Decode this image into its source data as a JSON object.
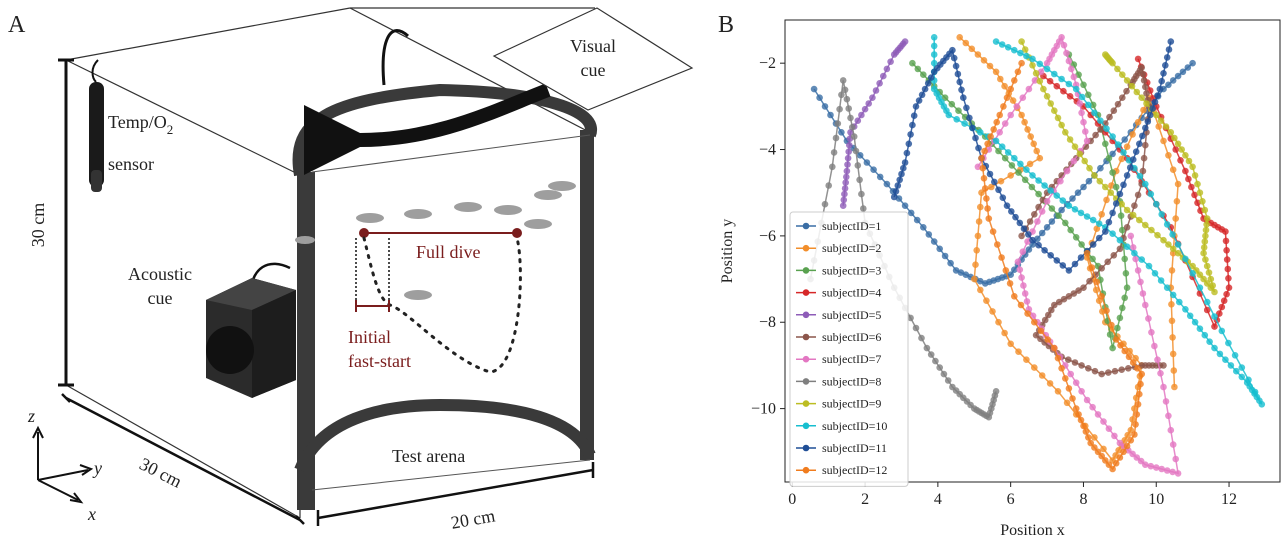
{
  "panel_a": {
    "letter": "A",
    "visual_cue": [
      "Visual",
      "cue"
    ],
    "sensor": [
      "Temp/O",
      "2",
      "sensor"
    ],
    "height_label": "30 cm",
    "acoustic_cue": [
      "Acoustic",
      "cue"
    ],
    "full_dive": "Full dive",
    "initial_fast_start": [
      "Initial",
      "fast-start"
    ],
    "test_arena": "Test arena",
    "depth_label": "30 cm",
    "width_label": "20 cm",
    "axis_z": "z",
    "axis_y": "y",
    "axis_x": "x",
    "colors": {
      "accent_dark_red": "#7a1d1d",
      "tank_frame": "#333333"
    }
  },
  "panel_b": {
    "letter": "B"
  },
  "chart_data": {
    "type": "line",
    "xlabel": "Position x",
    "ylabel": "Position y",
    "xlim": [
      -0.2,
      13.4
    ],
    "ylim": [
      -11.7,
      -1.0
    ],
    "xticks": [
      0,
      2,
      4,
      6,
      8,
      10,
      12
    ],
    "yticks": [
      -2,
      -4,
      -6,
      -8,
      -10
    ],
    "grid": false,
    "legend_position": "lower-left",
    "series": [
      {
        "name": "subjectID=1",
        "color": "#3a6ea5",
        "points": [
          [
            0.6,
            -2.6
          ],
          [
            1.5,
            -3.8
          ],
          [
            2.6,
            -4.8
          ],
          [
            3.6,
            -5.8
          ],
          [
            4.5,
            -6.8
          ],
          [
            5.3,
            -7.1
          ],
          [
            6.0,
            -6.9
          ],
          [
            6.6,
            -6.2
          ],
          [
            7.4,
            -5.4
          ],
          [
            8.3,
            -4.6
          ],
          [
            9.3,
            -3.6
          ],
          [
            10.2,
            -2.6
          ],
          [
            11.0,
            -2.0
          ]
        ]
      },
      {
        "name": "subjectID=2",
        "color": "#f28e2b",
        "points": [
          [
            4.6,
            -1.4
          ],
          [
            5.6,
            -2.2
          ],
          [
            6.3,
            -3.2
          ],
          [
            6.8,
            -4.2
          ],
          [
            5.2,
            -5.0
          ],
          [
            5.0,
            -7.0
          ],
          [
            6.0,
            -8.5
          ],
          [
            7.3,
            -9.6
          ],
          [
            8.8,
            -11.2
          ],
          [
            9.3,
            -10.5
          ],
          [
            9.6,
            -9.0
          ],
          [
            8.6,
            -8.0
          ],
          [
            8.1,
            -6.5
          ],
          [
            8.9,
            -4.5
          ],
          [
            9.8,
            -2.8
          ],
          [
            10.6,
            -4.8
          ],
          [
            10.4,
            -7.2
          ],
          [
            10.5,
            -9.5
          ]
        ]
      },
      {
        "name": "subjectID=3",
        "color": "#59a14f",
        "points": [
          [
            3.3,
            -2.0
          ],
          [
            4.2,
            -2.8
          ],
          [
            5.3,
            -3.7
          ],
          [
            6.4,
            -4.7
          ],
          [
            7.5,
            -5.7
          ],
          [
            8.4,
            -6.7
          ],
          [
            8.8,
            -8.6
          ],
          [
            9.2,
            -7.2
          ],
          [
            9.0,
            -5.2
          ],
          [
            8.4,
            -3.2
          ],
          [
            7.6,
            -1.8
          ]
        ]
      },
      {
        "name": "subjectID=4",
        "color": "#d62728",
        "points": [
          [
            9.5,
            -1.9
          ],
          [
            10.0,
            -3.0
          ],
          [
            10.8,
            -4.5
          ],
          [
            11.3,
            -5.6
          ],
          [
            11.9,
            -5.9
          ],
          [
            12.0,
            -7.2
          ],
          [
            11.6,
            -8.1
          ],
          [
            10.4,
            -5.8
          ],
          [
            9.2,
            -4.2
          ],
          [
            8.0,
            -3.0
          ],
          [
            6.9,
            -2.3
          ]
        ]
      },
      {
        "name": "subjectID=5",
        "color": "#8e5cb8",
        "points": [
          [
            1.4,
            -5.3
          ],
          [
            1.5,
            -4.5
          ],
          [
            1.6,
            -3.6
          ],
          [
            2.2,
            -2.8
          ],
          [
            2.8,
            -1.8
          ],
          [
            3.1,
            -1.5
          ]
        ]
      },
      {
        "name": "subjectID=6",
        "color": "#8c564b",
        "points": [
          [
            6.3,
            -6.0
          ],
          [
            7.0,
            -5.0
          ],
          [
            7.8,
            -4.2
          ],
          [
            8.6,
            -3.4
          ],
          [
            9.3,
            -2.5
          ],
          [
            9.6,
            -2.1
          ],
          [
            9.8,
            -3.0
          ],
          [
            9.6,
            -4.8
          ],
          [
            9.0,
            -6.3
          ],
          [
            8.0,
            -7.2
          ],
          [
            7.2,
            -7.6
          ],
          [
            6.7,
            -8.3
          ],
          [
            7.4,
            -8.8
          ],
          [
            8.5,
            -9.2
          ],
          [
            9.6,
            -9.0
          ],
          [
            10.2,
            -9.0
          ]
        ]
      },
      {
        "name": "subjectID=7",
        "color": "#e377c2",
        "points": [
          [
            5.1,
            -4.4
          ],
          [
            6.0,
            -3.2
          ],
          [
            7.0,
            -2.0
          ],
          [
            7.4,
            -1.4
          ],
          [
            7.8,
            -2.5
          ],
          [
            8.1,
            -3.8
          ],
          [
            7.0,
            -5.2
          ],
          [
            6.2,
            -6.6
          ],
          [
            6.5,
            -7.7
          ],
          [
            7.2,
            -8.6
          ],
          [
            8.1,
            -9.8
          ],
          [
            9.0,
            -10.8
          ],
          [
            9.7,
            -11.3
          ],
          [
            10.6,
            -11.5
          ],
          [
            10.2,
            -9.5
          ],
          [
            9.7,
            -7.6
          ],
          [
            9.3,
            -6.0
          ]
        ]
      },
      {
        "name": "subjectID=8",
        "color": "#7f7f7f",
        "points": [
          [
            0.5,
            -7.0
          ],
          [
            1.1,
            -4.4
          ],
          [
            1.4,
            -2.4
          ],
          [
            1.7,
            -3.7
          ],
          [
            2.0,
            -5.7
          ],
          [
            2.8,
            -7.2
          ],
          [
            3.7,
            -8.6
          ],
          [
            4.4,
            -9.5
          ],
          [
            5.0,
            -10.0
          ],
          [
            5.4,
            -10.2
          ],
          [
            5.6,
            -9.6
          ]
        ]
      },
      {
        "name": "subjectID=9",
        "color": "#bcbd22",
        "points": [
          [
            6.3,
            -1.5
          ],
          [
            6.9,
            -2.6
          ],
          [
            7.5,
            -3.6
          ],
          [
            8.3,
            -4.6
          ],
          [
            9.2,
            -5.4
          ],
          [
            10.2,
            -6.1
          ],
          [
            11.0,
            -6.7
          ],
          [
            11.6,
            -7.3
          ],
          [
            11.3,
            -6.4
          ],
          [
            11.4,
            -5.6
          ],
          [
            11.0,
            -4.4
          ],
          [
            10.4,
            -3.6
          ],
          [
            9.6,
            -2.8
          ],
          [
            8.8,
            -2.0
          ],
          [
            8.6,
            -1.8
          ]
        ]
      },
      {
        "name": "subjectID=10",
        "color": "#17becf",
        "points": [
          [
            3.9,
            -1.4
          ],
          [
            3.9,
            -2.6
          ],
          [
            4.3,
            -3.2
          ],
          [
            5.6,
            -3.8
          ],
          [
            6.6,
            -4.6
          ],
          [
            7.6,
            -5.3
          ],
          [
            8.6,
            -5.8
          ],
          [
            9.8,
            -6.7
          ],
          [
            10.8,
            -7.7
          ],
          [
            11.6,
            -8.6
          ],
          [
            12.5,
            -9.4
          ],
          [
            12.9,
            -9.9
          ],
          [
            11.8,
            -8.2
          ],
          [
            10.6,
            -6.2
          ],
          [
            9.7,
            -4.8
          ],
          [
            8.8,
            -3.7
          ],
          [
            7.8,
            -2.6
          ],
          [
            6.6,
            -1.9
          ],
          [
            5.6,
            -1.5
          ]
        ]
      },
      {
        "name": "subjectID=11",
        "color": "#1f4e96",
        "points": [
          [
            2.8,
            -5.1
          ],
          [
            3.1,
            -4.3
          ],
          [
            3.4,
            -3.0
          ],
          [
            3.9,
            -2.2
          ],
          [
            4.4,
            -1.7
          ],
          [
            4.7,
            -2.8
          ],
          [
            5.2,
            -4.2
          ],
          [
            5.9,
            -5.3
          ],
          [
            6.6,
            -6.1
          ],
          [
            7.6,
            -6.8
          ],
          [
            8.6,
            -5.9
          ],
          [
            9.2,
            -4.6
          ],
          [
            9.7,
            -3.5
          ],
          [
            10.1,
            -2.6
          ],
          [
            10.4,
            -1.5
          ]
        ]
      },
      {
        "name": "subjectID=12",
        "color": "#f07c1e",
        "points": [
          [
            6.3,
            -2.0
          ],
          [
            5.7,
            -3.2
          ],
          [
            5.2,
            -4.2
          ],
          [
            5.4,
            -5.6
          ],
          [
            6.1,
            -7.4
          ],
          [
            7.2,
            -8.6
          ],
          [
            7.8,
            -10.0
          ],
          [
            8.2,
            -10.8
          ],
          [
            8.8,
            -11.4
          ],
          [
            9.4,
            -10.6
          ],
          [
            9.6,
            -9.2
          ],
          [
            8.9,
            -8.4
          ],
          [
            8.1,
            -6.4
          ]
        ]
      }
    ]
  }
}
